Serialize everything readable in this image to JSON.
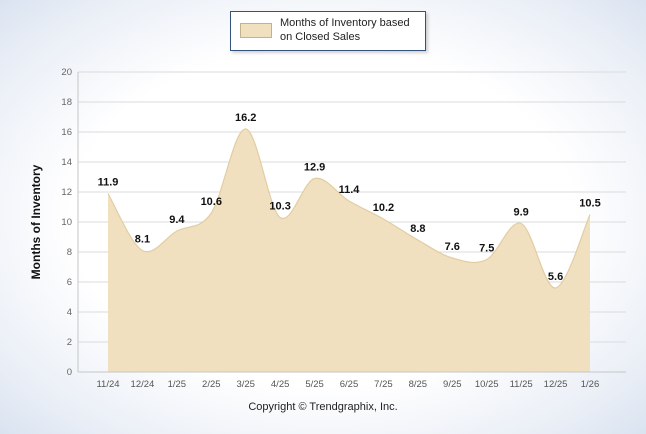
{
  "legend": {
    "label": "Months of Inventory based on Closed Sales"
  },
  "footer": {
    "copyright": "Copyright © Trendgraphix, Inc."
  },
  "chart_data": {
    "type": "area",
    "title": "",
    "categories": [
      "11/24",
      "12/24",
      "1/25",
      "2/25",
      "3/25",
      "4/25",
      "5/25",
      "6/25",
      "7/25",
      "8/25",
      "9/25",
      "10/25",
      "11/25",
      "12/25",
      "1/26"
    ],
    "values": [
      11.9,
      8.1,
      9.4,
      10.6,
      16.2,
      10.3,
      12.9,
      11.4,
      10.2,
      8.8,
      7.6,
      7.5,
      9.9,
      5.6,
      10.5
    ],
    "xlabel": "",
    "ylabel": "Months of Inventory",
    "ylim": [
      0,
      20
    ],
    "ytick_step": 2,
    "grid": true,
    "legend_position": "top-center",
    "series_name": "Months of Inventory based on Closed Sales",
    "area_color": "#F0E0BF",
    "area_edge_color": "#E2CDA2",
    "gridline_color": "#DBDBDB",
    "axis_line_color": "#C6C6C6",
    "tick_label_color": "#666666",
    "data_label_color": "#111111"
  }
}
